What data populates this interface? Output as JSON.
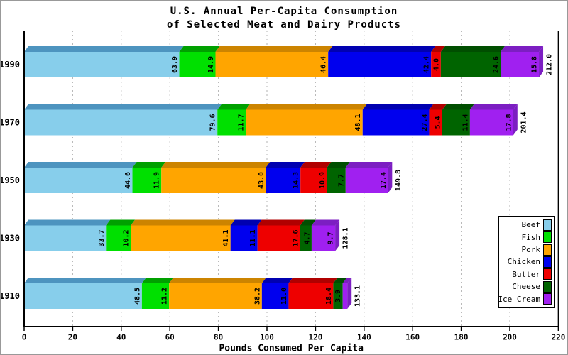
{
  "title": {
    "line1": "U.S. Annual Per-Capita Consumption",
    "line2": "of Selected Meat and Dairy Products"
  },
  "chart_data": {
    "type": "bar",
    "variant": "horizontal-stacked-3d",
    "title": "U.S. Annual Per-Capita Consumption of Selected Meat and Dairy Products",
    "xlabel": "Pounds Consumed Per Capita",
    "ylabel": "",
    "xlim": [
      0,
      220
    ],
    "x_ticks": [
      0,
      20,
      40,
      60,
      80,
      100,
      120,
      140,
      160,
      180,
      200,
      220
    ],
    "grid": "dashed vertical gridlines every 20, solid frame at 0 and 220",
    "categories": [
      "1990",
      "1970",
      "1950",
      "1930",
      "1910"
    ],
    "series": [
      {
        "name": "Beef",
        "color": "#87CEEB",
        "shade": "#4D94BF",
        "values": [
          63.9,
          79.6,
          44.6,
          33.7,
          48.5
        ]
      },
      {
        "name": "Fish",
        "color": "#00E000",
        "shade": "#00A000",
        "values": [
          14.9,
          11.7,
          11.9,
          10.2,
          11.2
        ]
      },
      {
        "name": "Pork",
        "color": "#FFA500",
        "shade": "#CC8400",
        "values": [
          46.4,
          48.1,
          43.0,
          41.1,
          38.2
        ]
      },
      {
        "name": "Chicken",
        "color": "#0000EE",
        "shade": "#0000B0",
        "values": [
          42.4,
          27.4,
          14.3,
          11.1,
          11.0
        ]
      },
      {
        "name": "Butter",
        "color": "#EE0000",
        "shade": "#B00000",
        "values": [
          4.0,
          5.4,
          10.9,
          17.6,
          18.4
        ]
      },
      {
        "name": "Cheese",
        "color": "#006400",
        "shade": "#004E00",
        "values": [
          24.6,
          11.4,
          7.7,
          4.7,
          3.9
        ]
      },
      {
        "name": "Ice Cream",
        "color": "#A020F0",
        "shade": "#7C1EC2",
        "values": [
          15.8,
          17.8,
          17.4,
          9.7,
          1.9
        ]
      }
    ],
    "stack_totals": [
      212.0,
      201.4,
      149.8,
      128.1,
      133.1
    ],
    "value_label_format": "one-decimal, rotated 90deg, shown only when segment wide enough",
    "legend_position": "right-middle, boxed, swatch right of label"
  }
}
